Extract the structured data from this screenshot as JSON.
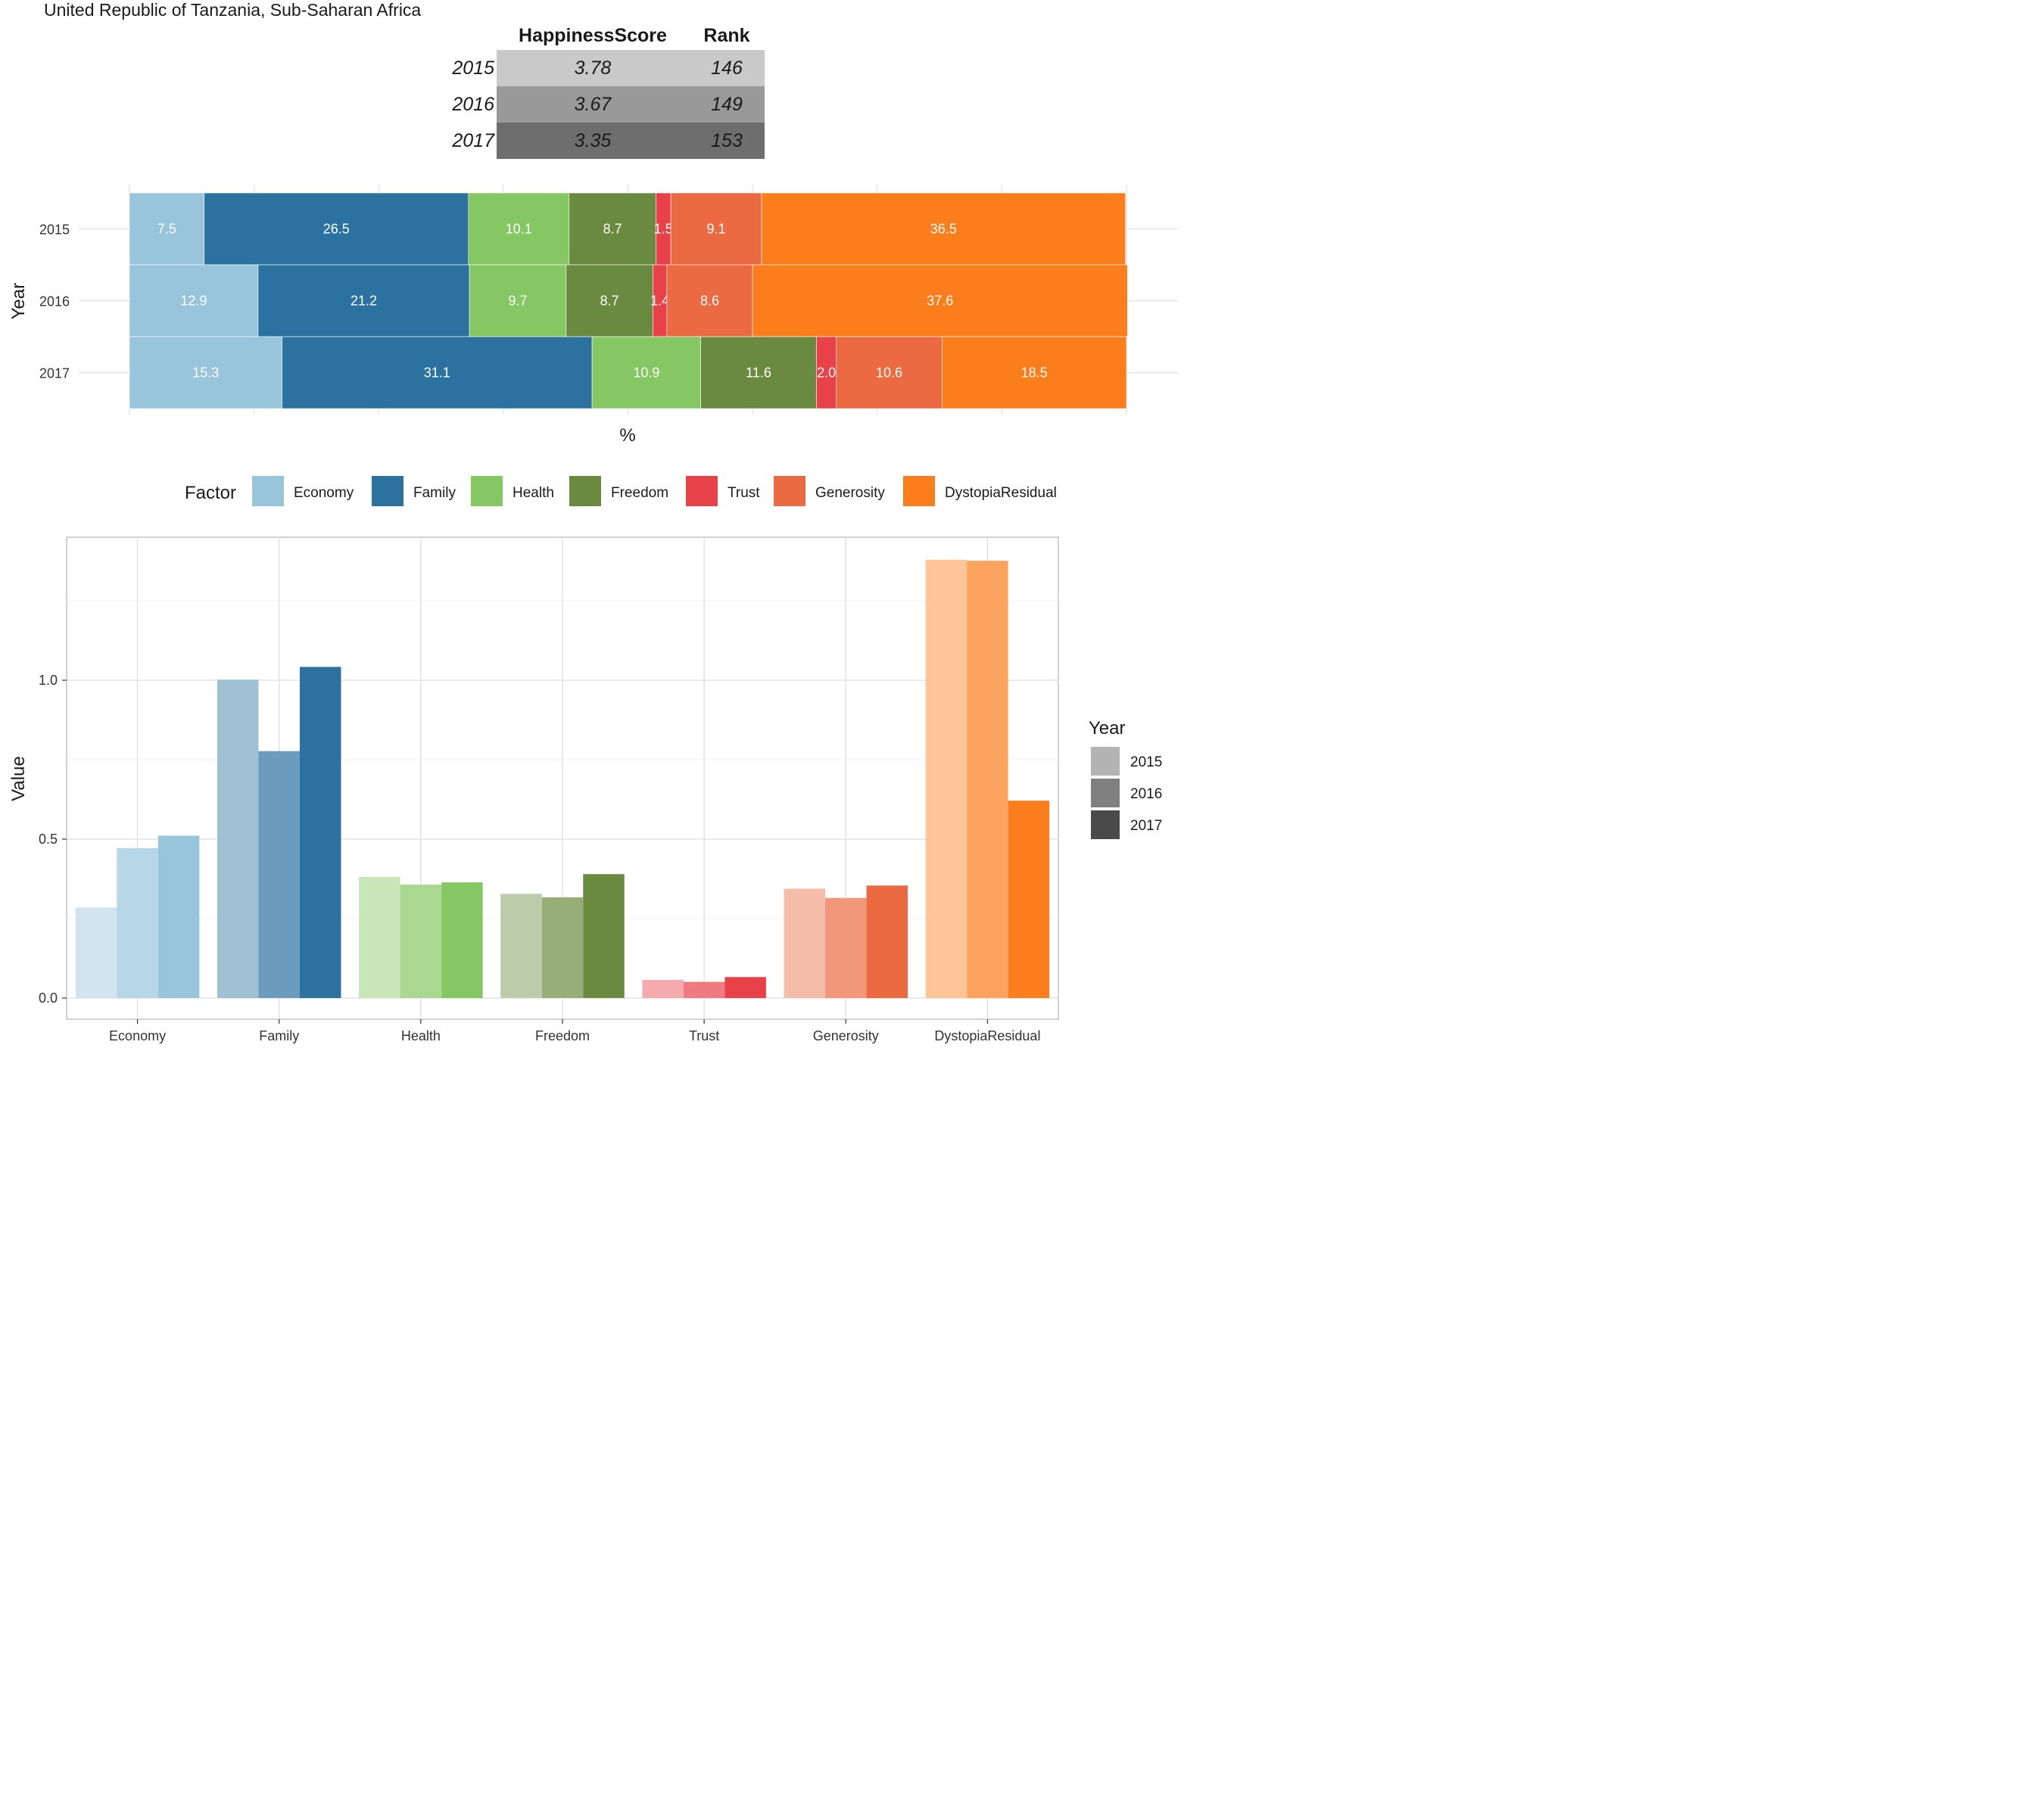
{
  "title": "United Republic of Tanzania, Sub-Saharan Africa",
  "summary_table": {
    "headers": [
      "HappinessScore",
      "Rank"
    ],
    "rows": [
      {
        "year": "2015",
        "score": "3.78",
        "rank": "146"
      },
      {
        "year": "2016",
        "score": "3.67",
        "rank": "149"
      },
      {
        "year": "2017",
        "score": "3.35",
        "rank": "153"
      }
    ]
  },
  "colors": {
    "Economy": "#98c4dc",
    "Family": "#2b72a0",
    "Health": "#85c762",
    "Freedom": "#6a8b3f",
    "Trust": "#e84149",
    "Generosity": "#ec6a41",
    "DystopiaResidual": "#fb7d1b"
  },
  "chart_data": [
    {
      "type": "bar",
      "orientation": "horizontal",
      "stacked": true,
      "categories": [
        "2015",
        "2016",
        "2017"
      ],
      "ylabel": "Year",
      "xlabel": "%",
      "xlim": [
        0,
        100
      ],
      "series": [
        {
          "name": "Economy",
          "values": [
            7.5,
            12.9,
            15.3
          ]
        },
        {
          "name": "Family",
          "values": [
            26.5,
            21.2,
            31.1
          ]
        },
        {
          "name": "Health",
          "values": [
            10.1,
            9.7,
            10.9
          ]
        },
        {
          "name": "Freedom",
          "values": [
            8.7,
            8.7,
            11.6
          ]
        },
        {
          "name": "Trust",
          "values": [
            1.5,
            1.4,
            2.0
          ]
        },
        {
          "name": "Generosity",
          "values": [
            9.1,
            8.6,
            10.6
          ]
        },
        {
          "name": "DystopiaResidual",
          "values": [
            36.5,
            37.6,
            18.5
          ]
        }
      ],
      "data_labels": true,
      "legend": {
        "title": "Factor",
        "position": "bottom"
      }
    },
    {
      "type": "bar",
      "orientation": "vertical",
      "grouped": true,
      "categories": [
        "Economy",
        "Family",
        "Health",
        "Freedom",
        "Trust",
        "Generosity",
        "DystopiaResidual"
      ],
      "ylabel": "Value",
      "xlabel": "",
      "ylim": [
        -0.05,
        1.45
      ],
      "yticks": [
        "0.0",
        "0.5",
        "1.0"
      ],
      "grid": true,
      "series": [
        {
          "name": "2015",
          "values": [
            0.285,
            1.002,
            0.381,
            0.328,
            0.057,
            0.344,
            1.379
          ]
        },
        {
          "name": "2016",
          "values": [
            0.472,
            0.777,
            0.357,
            0.317,
            0.051,
            0.315,
            1.376
          ]
        },
        {
          "name": "2017",
          "values": [
            0.511,
            1.042,
            0.364,
            0.39,
            0.066,
            0.354,
            0.621
          ]
        }
      ],
      "legend": {
        "title": "Year",
        "position": "right",
        "labels": [
          "2015",
          "2016",
          "2017"
        ],
        "swatch_colors": [
          "#b3b3b3",
          "#808080",
          "#4a4a4a"
        ]
      }
    }
  ]
}
